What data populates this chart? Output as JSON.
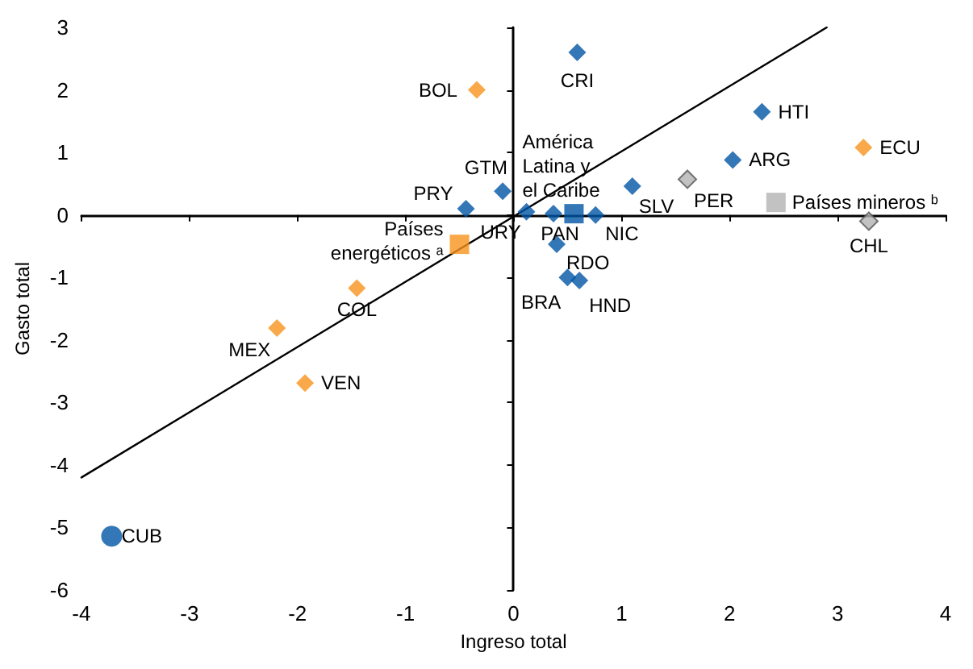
{
  "chart_data": {
    "type": "scatter",
    "xlabel": "Ingreso total",
    "ylabel": "Gasto total",
    "xlim": [
      -4,
      4
    ],
    "xticks": [
      -4,
      -3,
      -2,
      -1,
      0,
      1,
      2,
      3,
      4
    ],
    "ylim": [
      -6,
      3
    ],
    "yticks": [
      -6,
      -5,
      -4,
      -3,
      -2,
      -1,
      0,
      1,
      2,
      3
    ],
    "series": [
      {
        "color": "#0055a5",
        "marker": "diamond",
        "x": [
          0.59,
          2.3,
          2.03,
          1.1,
          -0.1,
          -0.44,
          0.12,
          0.37,
          0.76,
          0.4,
          0.5,
          0.61
        ],
        "values": [
          2.6,
          1.65,
          0.88,
          0.46,
          0.38,
          0.1,
          0.05,
          0.02,
          0.0,
          -0.47,
          -1.0,
          -1.05
        ]
      },
      {
        "color": "#f7941d",
        "marker": "diamond",
        "x": [
          -0.34,
          3.24,
          -1.45,
          -2.19,
          -1.93
        ],
        "values": [
          2.0,
          1.08,
          -1.17,
          -1.81,
          -2.69
        ]
      },
      {
        "color": "#b3b3b3",
        "marker": "diamond",
        "x": [
          1.61,
          3.29
        ],
        "values": [
          0.57,
          -0.1
        ]
      },
      {
        "color": "#0055a5",
        "marker": "square",
        "x": [
          0.56
        ],
        "values": [
          0.02
        ]
      },
      {
        "color": "#f7941d",
        "marker": "square",
        "x": [
          -0.5
        ],
        "values": [
          -0.47
        ]
      },
      {
        "color": "#b3b3b3",
        "marker": "square",
        "x": [
          2.43
        ],
        "values": [
          0.2
        ]
      },
      {
        "color": "#0055a5",
        "marker": "circle",
        "x": [
          -3.72
        ],
        "values": [
          -5.14
        ]
      },
      {
        "type": "line",
        "color": "#000000",
        "marker": "none",
        "line_style": "solid",
        "x": [
          -4,
          2.9
        ],
        "values": [
          -4.2,
          3.0
        ]
      }
    ],
    "annotations": [
      {
        "text": "CRI",
        "x": 0.59,
        "y": 2.6
      },
      {
        "text": "BOL",
        "x": -0.34,
        "y": 2.0
      },
      {
        "text": "HTI",
        "x": 2.3,
        "y": 1.65
      },
      {
        "text": "ECU",
        "x": 3.24,
        "y": 1.08
      },
      {
        "text": "ARG",
        "x": 2.03,
        "y": 0.88
      },
      {
        "text": "PER",
        "x": 1.61,
        "y": 0.57
      },
      {
        "text": "Países mineros ᵇ",
        "x": 2.43,
        "y": 0.2
      },
      {
        "text": "CHL",
        "x": 3.29,
        "y": -0.1
      },
      {
        "text": "SLV",
        "x": 1.1,
        "y": 0.46
      },
      {
        "text": "GTM",
        "x": -0.1,
        "y": 0.38
      },
      {
        "text": "PRY",
        "x": -0.44,
        "y": 0.1
      },
      {
        "text": "URY",
        "x": 0.12,
        "y": 0.05
      },
      {
        "text": "PAN",
        "x": 0.37,
        "y": 0.02
      },
      {
        "text": "América\nLatina y\nel Caribe",
        "x": 0.56,
        "y": 0.02
      },
      {
        "text": "NIC",
        "x": 0.76,
        "y": 0.0
      },
      {
        "text": "RDO",
        "x": 0.4,
        "y": -0.47
      },
      {
        "text": "BRA",
        "x": 0.5,
        "y": -1.0
      },
      {
        "text": "HND",
        "x": 0.61,
        "y": -1.05
      },
      {
        "text": "Países\nenergéticos ᵃ",
        "x": -0.5,
        "y": -0.47
      },
      {
        "text": "COL",
        "x": -1.45,
        "y": -1.17
      },
      {
        "text": "MEX",
        "x": -2.19,
        "y": -1.81
      },
      {
        "text": "VEN",
        "x": -1.93,
        "y": -2.69
      },
      {
        "text": "CUB",
        "x": -3.72,
        "y": -5.14
      }
    ]
  }
}
